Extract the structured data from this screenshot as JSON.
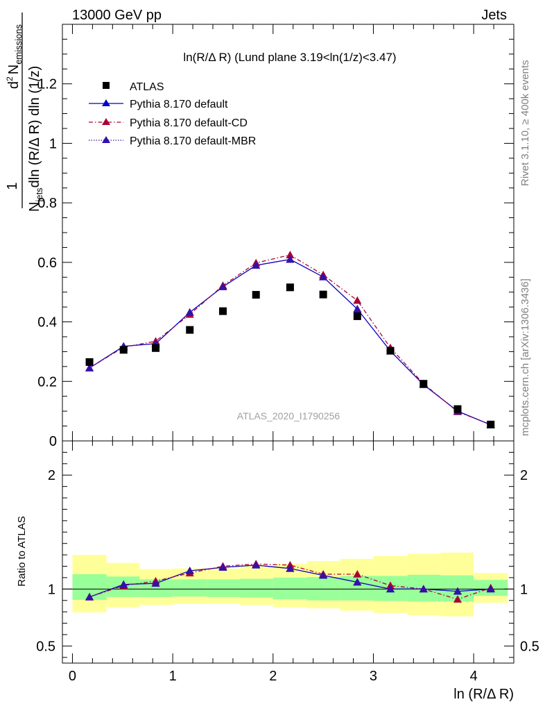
{
  "header": {
    "energy": "13000 GeV pp",
    "category": "Jets",
    "plot_title": "ln(R/Δ R) (Lund plane 3.19<ln(1/z)<3.47)",
    "analysis_id": "ATLAS_2020_I1790256",
    "side_rivet": "Rivet 3.1.10, ≥ 400k events",
    "side_mcplots": "mcplots.cern.ch [arXiv:1306.3436]"
  },
  "colors": {
    "data": "#000000",
    "default": "#0000cc",
    "cd": "#aa0033",
    "mbr": "#3311aa",
    "band_inner": "#99ff99",
    "band_outer": "#ffff99"
  },
  "chart_data": [
    {
      "type": "scatter",
      "ylabel": "1/N_jets d²N_emissions / dln(R/ΔR) dln(1/z)",
      "ylabel_parts": {
        "one": "1",
        "N": "N",
        "jets": "jets",
        "dln1": "dln (R/Δ R) dln (1/z)",
        "d2": "d",
        "sup2": "2",
        "Nem": "N",
        "emissions": "emissions"
      },
      "xlim": [
        -0.1,
        4.4
      ],
      "ylim": [
        0,
        1.4
      ],
      "yticks": [
        0,
        0.2,
        0.4,
        0.6,
        0.8,
        1,
        1.2
      ],
      "ytick_labels": [
        "0",
        "0.2",
        "0.4",
        "0.6",
        "0.8",
        "1",
        "1.2"
      ],
      "x": [
        0.17,
        0.51,
        0.83,
        1.17,
        1.5,
        1.83,
        2.17,
        2.5,
        2.84,
        3.17,
        3.5,
        3.84,
        4.17
      ],
      "series": [
        {
          "name": "ATLAS",
          "marker": "square",
          "values": [
            0.265,
            0.306,
            0.312,
            0.373,
            0.436,
            0.491,
            0.516,
            0.492,
            0.419,
            0.303,
            0.192,
            0.107,
            0.055
          ]
        },
        {
          "name": "Pythia 8.170 default",
          "marker": "triangle",
          "line": "solid",
          "values": [
            0.245,
            0.318,
            0.327,
            0.432,
            0.518,
            0.59,
            0.61,
            0.551,
            0.443,
            0.302,
            0.189,
            0.1,
            0.054
          ]
        },
        {
          "name": "Pythia 8.170 default-CD",
          "marker": "triangle",
          "line": "dashdot",
          "values": [
            0.245,
            0.315,
            0.335,
            0.425,
            0.522,
            0.598,
            0.625,
            0.558,
            0.472,
            0.313,
            0.192,
            0.098,
            0.055
          ]
        },
        {
          "name": "Pythia 8.170 default-MBR",
          "marker": "triangle",
          "line": "dotted",
          "values": [
            0.245,
            0.318,
            0.327,
            0.432,
            0.518,
            0.59,
            0.61,
            0.551,
            0.443,
            0.302,
            0.189,
            0.1,
            0.054
          ]
        }
      ],
      "legend_position": "top-left"
    },
    {
      "type": "line",
      "ylabel": "Ratio to ATLAS",
      "xlabel": "ln (R/Δ R)",
      "xlim": [
        -0.1,
        4.4
      ],
      "ylim": [
        0.35,
        2.3
      ],
      "xticks": [
        0,
        1,
        2,
        3,
        4
      ],
      "xtick_labels": [
        "0",
        "1",
        "2",
        "3",
        "4"
      ],
      "yticks": [
        0.5,
        1,
        2
      ],
      "ytick_labels": [
        "0.5",
        "1",
        "2"
      ],
      "bins": [
        [
          0.0,
          0.34
        ],
        [
          0.34,
          0.67
        ],
        [
          0.67,
          1.0
        ],
        [
          1.0,
          1.34
        ],
        [
          1.34,
          1.67
        ],
        [
          1.67,
          2.0
        ],
        [
          2.0,
          2.34
        ],
        [
          2.34,
          2.67
        ],
        [
          2.67,
          3.0
        ],
        [
          3.0,
          3.34
        ],
        [
          3.34,
          3.67
        ],
        [
          3.67,
          4.0
        ],
        [
          4.0,
          4.34
        ]
      ],
      "band_inner": [
        [
          0.905,
          1.13
        ],
        [
          0.93,
          1.11
        ],
        [
          0.93,
          1.085
        ],
        [
          0.935,
          1.085
        ],
        [
          0.93,
          1.085
        ],
        [
          0.925,
          1.09
        ],
        [
          0.91,
          1.1
        ],
        [
          0.9,
          1.105
        ],
        [
          0.9,
          1.115
        ],
        [
          0.895,
          1.115
        ],
        [
          0.89,
          1.125
        ],
        [
          0.89,
          1.12
        ],
        [
          0.94,
          1.08
        ]
      ],
      "band_outer": [
        [
          0.795,
          1.3
        ],
        [
          0.84,
          1.23
        ],
        [
          0.86,
          1.175
        ],
        [
          0.87,
          1.18
        ],
        [
          0.87,
          1.18
        ],
        [
          0.86,
          1.2
        ],
        [
          0.84,
          1.22
        ],
        [
          0.83,
          1.245
        ],
        [
          0.81,
          1.265
        ],
        [
          0.79,
          1.29
        ],
        [
          0.77,
          1.31
        ],
        [
          0.76,
          1.32
        ],
        [
          0.88,
          1.14
        ]
      ],
      "x": [
        0.17,
        0.51,
        0.83,
        1.17,
        1.5,
        1.83,
        2.17,
        2.5,
        2.84,
        3.17,
        3.5,
        3.84,
        4.17
      ],
      "series": [
        {
          "name": "Pythia 8.170 default",
          "values": [
            0.93,
            1.04,
            1.05,
            1.16,
            1.19,
            1.21,
            1.18,
            1.12,
            1.06,
            1.0,
            1.0,
            0.98,
            1.0
          ]
        },
        {
          "name": "Pythia 8.170 default-CD",
          "values": [
            0.93,
            1.03,
            1.07,
            1.14,
            1.2,
            1.22,
            1.21,
            1.13,
            1.13,
            1.03,
            1.0,
            0.91,
            1.01
          ]
        },
        {
          "name": "Pythia 8.170 default-MBR",
          "values": [
            0.93,
            1.04,
            1.05,
            1.16,
            1.19,
            1.21,
            1.18,
            1.12,
            1.06,
            1.0,
            1.0,
            0.98,
            1.0
          ]
        }
      ],
      "reference_line": 1
    }
  ]
}
